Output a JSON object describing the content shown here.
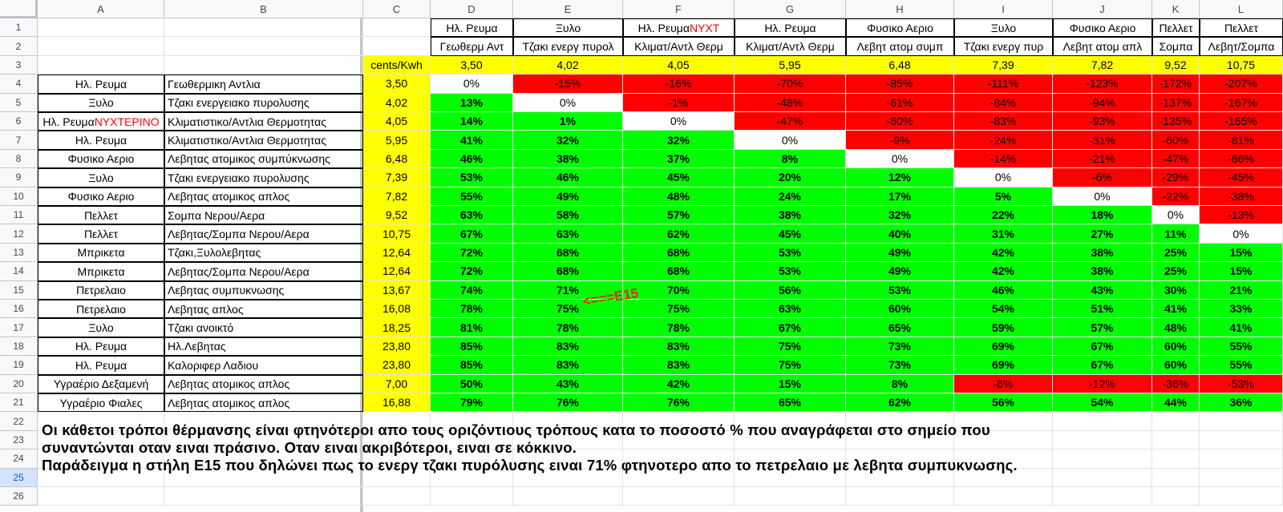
{
  "columns": [
    "A",
    "B",
    "C",
    "D",
    "E",
    "F",
    "G",
    "H",
    "I",
    "J",
    "K",
    "L"
  ],
  "rows": [
    "1",
    "2",
    "3",
    "4",
    "5",
    "6",
    "7",
    "8",
    "9",
    "10",
    "11",
    "12",
    "13",
    "14",
    "15",
    "16",
    "17",
    "18",
    "19",
    "20",
    "21",
    "22",
    "23",
    "24",
    "25",
    "26"
  ],
  "header_row1": {
    "D": {
      "text": "Ηλ. Ρευμα"
    },
    "E": {
      "text": "Ξυλο"
    },
    "F": {
      "text": "Ηλ. Ρευμα",
      "red": "ΝΥΧΤ"
    },
    "G": {
      "text": "Ηλ. Ρευμα"
    },
    "H": {
      "text": "Φυσικο Αεριο"
    },
    "I": {
      "text": "Ξυλο"
    },
    "J": {
      "text": "Φυσικο Αεριο"
    },
    "K": {
      "text": "Πελλετ"
    },
    "L": {
      "text": "Πελλετ"
    }
  },
  "header_row2": {
    "D": "Γεωθερμ Αντ",
    "E": "Τζακι ενεργ πυρολ",
    "F": "Κλιματ/Αντλ Θερμ",
    "G": "Κλιματ/Αντλ Θερμ",
    "H": "Λεβητ ατομ συμπ",
    "I": "Τζακι ενεργ πυρ",
    "J": "Λεβητ ατομ απλ",
    "K": "Σομπα",
    "L": "Λεβητ/Σομπα"
  },
  "row3": {
    "C": "cents/Kwh",
    "D": "3,50",
    "E": "4,02",
    "F": "4,05",
    "G": "5,95",
    "H": "6,48",
    "I": "7,39",
    "J": "7,82",
    "K": "9,52",
    "L": "10,75"
  },
  "data_rows": [
    {
      "a": "Ηλ. Ρευμα",
      "b": "Γεωθερμικη Αντλια",
      "c": "3,50",
      "v": [
        "0%",
        "-15%",
        "-16%",
        "-70%",
        "-85%",
        "-111%",
        "-123%",
        "-172%",
        "-207%"
      ]
    },
    {
      "a": "Ξυλο",
      "b": "Τζακι ενεργειακο πυρολυσης",
      "c": "4,02",
      "v": [
        "13%",
        "0%",
        "-1%",
        "-48%",
        "-61%",
        "-84%",
        "-94%",
        "-137%",
        "-167%"
      ]
    },
    {
      "a": "Ηλ. Ρευμα",
      "a_red": "ΝΥΧΤΕΡΙΝΟ",
      "b": "Κλιματιστικο/Αντλια Θερμοτητας",
      "c": "4,05",
      "v": [
        "14%",
        "1%",
        "0%",
        "-47%",
        "-60%",
        "-83%",
        "-93%",
        "-135%",
        "-165%"
      ]
    },
    {
      "a": "Ηλ. Ρευμα",
      "b": "Κλιματιστικο/Αντλια Θερμοτητας",
      "c": "5,95",
      "v": [
        "41%",
        "32%",
        "32%",
        "0%",
        "-9%",
        "-24%",
        "-31%",
        "-60%",
        "-81%"
      ]
    },
    {
      "a": "Φυσικο Αεριο",
      "b": "Λεβητας ατομικος συμπύκνωσης",
      "c": "6,48",
      "v": [
        "46%",
        "38%",
        "37%",
        "8%",
        "0%",
        "-14%",
        "-21%",
        "-47%",
        "-66%"
      ]
    },
    {
      "a": "Ξυλο",
      "b": "Τζακι ενεργειακο πυρολυσης",
      "c": "7,39",
      "v": [
        "53%",
        "46%",
        "45%",
        "20%",
        "12%",
        "0%",
        "-6%",
        "-29%",
        "-45%"
      ]
    },
    {
      "a": "Φυσικο Αεριο",
      "b": "Λεβητας ατομικος απλος",
      "c": "7,82",
      "v": [
        "55%",
        "49%",
        "48%",
        "24%",
        "17%",
        "5%",
        "0%",
        "-22%",
        "-38%"
      ]
    },
    {
      "a": "Πελλετ",
      "b": "Σομπα Νερου/Αερα",
      "c": "9,52",
      "v": [
        "63%",
        "58%",
        "57%",
        "38%",
        "32%",
        "22%",
        "18%",
        "0%",
        "-13%"
      ]
    },
    {
      "a": "Πελλετ",
      "b": "Λεβητας/Σομπα Νερου/Αερα",
      "c": "10,75",
      "v": [
        "67%",
        "63%",
        "62%",
        "45%",
        "40%",
        "31%",
        "27%",
        "11%",
        "0%"
      ]
    },
    {
      "a": "Μπρικετα",
      "b": "Τζακι,Ξυλολεβητας",
      "c": "12,64",
      "v": [
        "72%",
        "68%",
        "68%",
        "53%",
        "49%",
        "42%",
        "38%",
        "25%",
        "15%"
      ]
    },
    {
      "a": "Μπρικετα",
      "b": "Λεβητας/Σομπα Νερου/Αερα",
      "c": "12,64",
      "v": [
        "72%",
        "68%",
        "68%",
        "53%",
        "49%",
        "42%",
        "38%",
        "25%",
        "15%"
      ]
    },
    {
      "a": "Πετρελαιο",
      "b": "Λεβητας συμπυκνωσης",
      "c": "13,67",
      "v": [
        "74%",
        "71%",
        "70%",
        "56%",
        "53%",
        "46%",
        "43%",
        "30%",
        "21%"
      ]
    },
    {
      "a": "Πετρελαιο",
      "b": "Λεβητας απλος",
      "c": "16,08",
      "v": [
        "78%",
        "75%",
        "75%",
        "63%",
        "60%",
        "54%",
        "51%",
        "41%",
        "33%"
      ]
    },
    {
      "a": "Ξυλο",
      "b": "Τζακι ανοικτό",
      "c": "18,25",
      "v": [
        "81%",
        "78%",
        "78%",
        "67%",
        "65%",
        "59%",
        "57%",
        "48%",
        "41%"
      ]
    },
    {
      "a": "Ηλ. Ρευμα",
      "b": "Ηλ.Λεβητας",
      "c": "23,80",
      "v": [
        "85%",
        "83%",
        "83%",
        "75%",
        "73%",
        "69%",
        "67%",
        "60%",
        "55%"
      ]
    },
    {
      "a": "Ηλ. Ρευμα",
      "b": "Καλοριφερ Λαδιου",
      "c": "23,80",
      "v": [
        "85%",
        "83%",
        "83%",
        "75%",
        "73%",
        "69%",
        "67%",
        "60%",
        "55%"
      ]
    },
    {
      "a": "Υγραέριο Δεξαμενή",
      "b": "Λεβητας ατομικος απλος",
      "c": "7,00",
      "v": [
        "50%",
        "43%",
        "42%",
        "15%",
        "8%",
        "-6%",
        "-12%",
        "-36%",
        "-53%"
      ]
    },
    {
      "a": "Υγραέριο Φιαλες",
      "b": "Λεβητας ατομικος απλος",
      "c": "16,88",
      "v": [
        "79%",
        "76%",
        "76%",
        "65%",
        "62%",
        "56%",
        "54%",
        "44%",
        "36%"
      ]
    }
  ],
  "annotation": "<===E15",
  "notes": [
    "Οι κάθετοι τρόποι θέρμανσης είναι φτηνότεροι απο τους οριζόντιους τρόπους κατα το ποσοστό % που αναγράφεται στο σημείο που",
    "συναντώνται οταν ειναι πράσινο. Οταν ειναι ακριβότεροι, ειναι σε κόκκινο.",
    "Παράδειγμα η στήλη Ε15 που δηλώνει πως το ενεργ τζακι πυρόλυσης ειναι 71% φτηνοτερο απο το πετρελαιο με λεβητα συμπυκνωσης."
  ],
  "colors": {
    "green": "#00ff00",
    "red": "#ff0000",
    "yellow": "#ffff00",
    "annotation": "#e8281e"
  }
}
